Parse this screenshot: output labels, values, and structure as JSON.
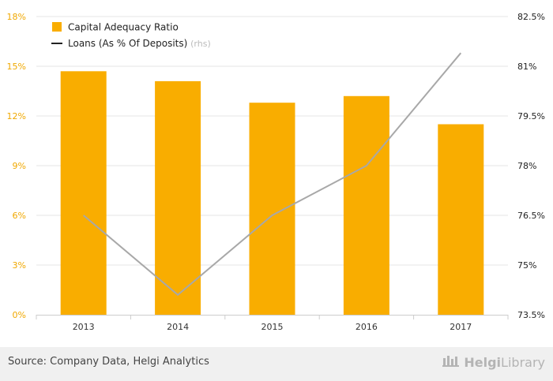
{
  "chart_data": {
    "type": "bar",
    "categories": [
      "2013",
      "2014",
      "2015",
      "2016",
      "2017"
    ],
    "series": [
      {
        "name": "Capital Adequacy Ratio",
        "type": "bar",
        "axis": "left",
        "values": [
          14.7,
          14.1,
          12.8,
          13.2,
          11.5
        ],
        "color": "#f9ad00"
      },
      {
        "name": "Loans (As % Of Deposits)",
        "name_suffix": "(rhs)",
        "type": "line",
        "axis": "right",
        "values": [
          76.5,
          74.1,
          76.5,
          78.0,
          81.4
        ],
        "color": "#a8a8a8"
      }
    ],
    "y_left": {
      "ylim": [
        0,
        18
      ],
      "ticks": [
        0,
        3,
        6,
        9,
        12,
        15,
        18
      ],
      "tick_labels": [
        "0%",
        "3%",
        "6%",
        "9%",
        "12%",
        "15%",
        "18%"
      ],
      "color": "#f0a800"
    },
    "y_right": {
      "ylim": [
        73.5,
        82.5
      ],
      "ticks": [
        73.5,
        75,
        76.5,
        78,
        79.5,
        81,
        82.5
      ],
      "tick_labels": [
        "73.5%",
        "75%",
        "76.5%",
        "78%",
        "79.5%",
        "81%",
        "82.5%"
      ],
      "color": "#222222"
    },
    "grid": true,
    "legend": "top-left"
  },
  "footer": {
    "source": "Source: Company Data, Helgi Analytics",
    "brand_prefix": "Helgi",
    "brand_suffix": "Library"
  },
  "icons": {
    "brand_logo": "helgi-library-logo-icon"
  }
}
